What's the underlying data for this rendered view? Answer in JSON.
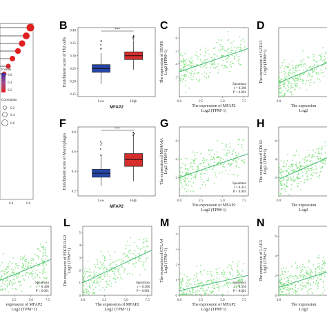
{
  "panels": {
    "B": "B",
    "C": "C",
    "D": "D",
    "F": "F",
    "G": "G",
    "H": "H",
    "L": "L",
    "M": "M",
    "N": "N"
  },
  "colors": {
    "low": "#2747a8",
    "high": "#d62d2d",
    "points": "#7ee07e",
    "fit": "#3cb371",
    "lollipop_high": "#e02020",
    "lollipop_low": "#3c2a9e"
  },
  "lollipop": {
    "legend_pvalue_title": "P.value",
    "legend_pvalue_ticks": [
      "0.6",
      "0.4",
      "0.2"
    ],
    "legend_corr_title": "Correlation",
    "legend_corr_ticks": [
      "0.2",
      "0.4",
      "0.6"
    ],
    "x_ticks": [
      "0.4",
      "0.6"
    ]
  },
  "chart_data": [
    {
      "id": "B",
      "type": "box",
      "ylabel": "Enrichment score of Th2 cells",
      "xlabel": "MFAP2",
      "categories": [
        "Low",
        "High"
      ],
      "yticks": [
        "0.40",
        "0.35",
        "0.30",
        "0.25",
        "0.20",
        "0.15"
      ],
      "ylim": [
        0.14,
        0.41
      ],
      "boxes": [
        {
          "name": "Low",
          "q1": 0.235,
          "median": 0.25,
          "q3": 0.265,
          "whisker_low": 0.19,
          "whisker_high": 0.31
        },
        {
          "name": "High",
          "q1": 0.285,
          "median": 0.3,
          "q3": 0.315,
          "whisker_low": 0.245,
          "whisker_high": 0.36
        }
      ],
      "significance": "***"
    },
    {
      "id": "F",
      "type": "box",
      "ylabel": "Enrichment score of Macrophages",
      "xlabel": "MFAP2",
      "categories": [
        "Low",
        "High"
      ],
      "yticks": [
        "0.8",
        "0.6",
        "0.4",
        "0.2"
      ],
      "ylim": [
        0.15,
        0.85
      ],
      "boxes": [
        {
          "name": "Low",
          "q1": 0.34,
          "median": 0.38,
          "q3": 0.42,
          "whisker_low": 0.25,
          "whisker_high": 0.56
        },
        {
          "name": "High",
          "q1": 0.45,
          "median": 0.52,
          "q3": 0.58,
          "whisker_low": 0.3,
          "whisker_high": 0.76
        }
      ],
      "significance": "***"
    },
    {
      "id": "C",
      "type": "scatter",
      "ylabel": "The expression of STAT6",
      "ylabel2": "Log2 (TPM+1)",
      "xlabel": "The expression of MFAP2",
      "xlabel2": "Log2 (TPM+1)",
      "xticks": [
        "0.0",
        "2.5",
        "5.0",
        "7.5"
      ],
      "yticks": [
        "3",
        "4",
        "5",
        "6"
      ],
      "xlim": [
        0,
        8
      ],
      "ylim": [
        1.5,
        6.8
      ],
      "fit": [
        [
          0.0,
          3.4
        ],
        [
          8.0,
          5.2
        ]
      ],
      "stats": [
        "Spearman",
        "r = 0.308",
        "P < 0.001"
      ]
    },
    {
      "id": "D",
      "type": "scatter",
      "ylabel": "The expression of GATA3",
      "ylabel2": "Log2 (TPM+1)",
      "xlabel": "The expression",
      "xlabel2": "Log2",
      "xticks": [
        "0.0"
      ],
      "yticks": [],
      "xlim": [
        0,
        3
      ],
      "ylim": [
        0,
        6
      ],
      "fit": [
        [
          0.0,
          1.2
        ],
        [
          3.0,
          3.0
        ]
      ],
      "stats": []
    },
    {
      "id": "G",
      "type": "scatter",
      "ylabel": "The expression of MS4A4A",
      "ylabel2": "Log2 (TPM+1)",
      "xlabel": "The expression of MFAP2",
      "xlabel2": "Log2 (TPM+1)",
      "xticks": [
        "0.0",
        "2.5",
        "5.0",
        "7.5"
      ],
      "yticks": [
        "2",
        "4",
        "6"
      ],
      "xlim": [
        0,
        8
      ],
      "ylim": [
        0,
        7.5
      ],
      "fit": [
        [
          0.0,
          2.0
        ],
        [
          8.0,
          4.6
        ]
      ],
      "stats": [
        "Spearman",
        "r = 0.452",
        "P < 0.001"
      ]
    },
    {
      "id": "H",
      "type": "scatter",
      "ylabel": "The expression of CD163",
      "ylabel2": "Log2 (TPM+1)",
      "xlabel": "The expression",
      "xlabel2": "Log2",
      "xticks": [
        "0.0"
      ],
      "yticks": [
        "2",
        "4",
        "6"
      ],
      "xlim": [
        0,
        3
      ],
      "ylim": [
        0,
        7.5
      ],
      "fit": [
        [
          0.0,
          1.8
        ],
        [
          3.0,
          4.2
        ]
      ],
      "stats": []
    },
    {
      "id": "K",
      "type": "scatter",
      "ylabel": "",
      "ylabel2": "",
      "xlabel": "expression of MFAP2",
      "xlabel2": "Log2 (TPM+1)",
      "xticks": [
        "2.5",
        "5.0",
        "7.5"
      ],
      "yticks": [],
      "xlim": [
        0,
        8
      ],
      "ylim": [
        0,
        5
      ],
      "fit": [
        [
          0.0,
          1.0
        ],
        [
          8.0,
          2.6
        ]
      ],
      "stats": [
        "Spearman",
        "r = 0.498",
        "P < 0.001"
      ]
    },
    {
      "id": "L",
      "type": "scatter",
      "ylabel": "The expression of PDCD1LG2",
      "ylabel2": "Log2 (TPM+1)",
      "xlabel": "The expression of MFAP2",
      "xlabel2": "Log2 (TPM+1)",
      "xticks": [
        "0.0",
        "2.5",
        "5.0",
        "7.5"
      ],
      "yticks": [
        "0",
        "1",
        "2",
        "3",
        "4",
        "5"
      ],
      "xlim": [
        0,
        8
      ],
      "ylim": [
        0,
        5.5
      ],
      "fit": [
        [
          0.0,
          1.0
        ],
        [
          8.0,
          3.6
        ]
      ],
      "stats": [
        "Spearman",
        "r = 0.508",
        "P < 0.001"
      ]
    },
    {
      "id": "M",
      "type": "scatter",
      "ylabel": "The expression of CTLA4",
      "ylabel2": "Log2 (TPM+1)",
      "xlabel": "The expression of MFAP2",
      "xlabel2": "Log2 (TPM+1)",
      "xticks": [
        "0.0",
        "2.5",
        "5.0",
        "7.5"
      ],
      "yticks": [
        "0",
        "1",
        "2",
        "3",
        "4"
      ],
      "xlim": [
        0,
        8
      ],
      "ylim": [
        0,
        4.5
      ],
      "fit": [
        [
          0.0,
          0.3
        ],
        [
          8.0,
          1.3
        ]
      ],
      "stats": [
        "Spearman",
        "r = 0.356",
        "P < 0.001"
      ]
    },
    {
      "id": "N",
      "type": "scatter",
      "ylabel": "The expression of LAG3",
      "ylabel2": "Log2 (TPM+1)",
      "xlabel": "The expression",
      "xlabel2": "Log2",
      "xticks": [
        "0.0"
      ],
      "yticks": [
        "0",
        "2",
        "4",
        "6"
      ],
      "xlim": [
        0,
        3
      ],
      "ylim": [
        0,
        7
      ],
      "fit": [
        [
          0.0,
          0.8
        ],
        [
          3.0,
          2.4
        ]
      ],
      "stats": []
    }
  ]
}
